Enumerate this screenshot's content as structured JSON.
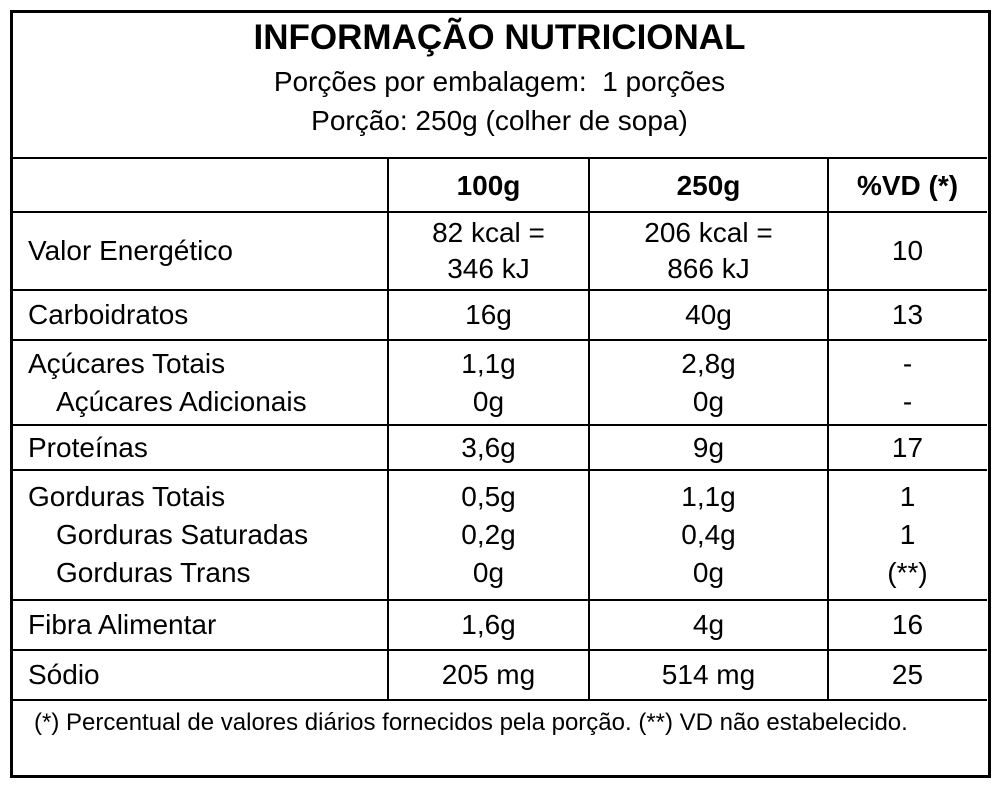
{
  "header": {
    "title": "INFORMAÇÃO NUTRICIONAL",
    "lines": [
      "Porções por embalagem:  1 porções",
      "Porção: 250g (colher de sopa)"
    ]
  },
  "table": {
    "columns": [
      "100g",
      "250g",
      "%VD (*)"
    ],
    "rows": [
      [
        [
          "Valor Energético",
          "82 kcal =\n346 kJ",
          "206 kcal =\n866  kJ",
          "10"
        ]
      ],
      [
        [
          "Carboidratos",
          "16g",
          "40g",
          "13"
        ]
      ],
      [
        [
          "Açúcares Totais",
          "1,1g",
          "2,8g",
          "-"
        ],
        [
          "Açúcares Adicionais",
          "0g",
          "0g",
          "-"
        ]
      ],
      [
        [
          "Proteínas",
          "3,6g",
          "9g",
          "17"
        ]
      ],
      [
        [
          "Gorduras Totais",
          "0,5g",
          "1,1g",
          "1"
        ],
        [
          "Gorduras Saturadas",
          "0,2g",
          "0,4g",
          "1"
        ],
        [
          "Gorduras Trans",
          "0g",
          "0g",
          "(**)"
        ]
      ],
      [
        [
          "Fibra Alimentar",
          "1,6g",
          "4g",
          "16"
        ]
      ],
      [
        [
          "Sódio",
          "205 mg",
          "514 mg",
          "25"
        ]
      ]
    ]
  },
  "footnote": "(*) Percentual de valores diários fornecidos pela porção. (**) VD não estabelecido."
}
